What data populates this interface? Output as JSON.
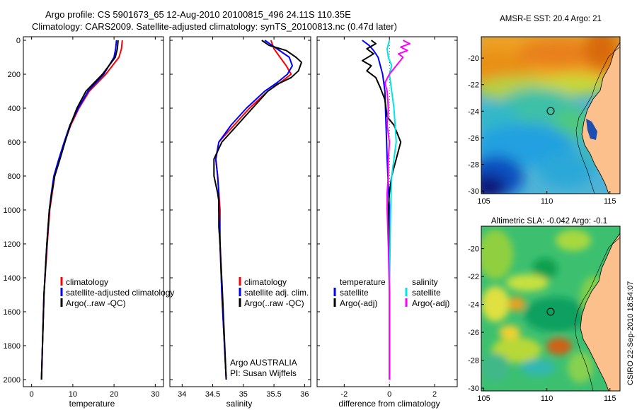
{
  "header": {
    "title_line1": "Argo profile: CS 5901673_65 12-Aug-2010 20100815_496 24.11S 110.35E",
    "title_line2": "Climatology: CARS2009. Satellite-adjusted climatology: synTS_20100813.nc (0.47d later)"
  },
  "credits": {
    "argo": "Argo AUSTRALIA",
    "pi": "PI: Susan Wijffels",
    "stamp": "CSIRO 22-Sep-2010 18:54:07"
  },
  "colors": {
    "climatology": "#ff0000",
    "satellite": "#0000ff",
    "argo": "#000000",
    "sal_satellite": "#00e5e5",
    "sal_argo": "#ff00ff",
    "land": "#fbc08c"
  },
  "chart_data": [
    {
      "type": "line",
      "xlabel": "temperature",
      "xticks": [
        "0",
        "10",
        "20",
        "30"
      ],
      "xlim": [
        -2,
        32
      ],
      "ylim": [
        2000,
        0
      ],
      "yticks": [
        "0",
        "200",
        "400",
        "600",
        "800",
        "1000",
        "1200",
        "1400",
        "1600",
        "1800",
        "2000"
      ],
      "legend": [
        "climatology",
        "satellite-adjusted climatology",
        "Argo(..raw -QC)"
      ],
      "series": [
        {
          "name": "climatology",
          "color": "#ff0000",
          "depth": [
            0,
            50,
            100,
            200,
            300,
            400,
            500,
            600,
            700,
            800,
            900,
            1000,
            1200,
            1500,
            2000
          ],
          "values": [
            22.0,
            21.8,
            21.2,
            18.0,
            14.0,
            11.5,
            9.5,
            8.0,
            6.8,
            5.6,
            5.0,
            4.4,
            3.8,
            3.0,
            2.4
          ]
        },
        {
          "name": "satellite-adjusted climatology",
          "color": "#0000ff",
          "depth": [
            0,
            50,
            100,
            200,
            300,
            400,
            500,
            600,
            700,
            800,
            900,
            1000,
            1200,
            1500,
            2000
          ],
          "values": [
            20.6,
            20.4,
            20.0,
            17.5,
            13.7,
            11.3,
            9.3,
            7.9,
            6.6,
            5.4,
            4.8,
            4.3,
            3.7,
            3.0,
            2.4
          ]
        },
        {
          "name": "Argo(..raw -QC)",
          "color": "#000000",
          "depth": [
            0,
            50,
            100,
            200,
            300,
            400,
            500,
            600,
            700,
            800,
            900,
            1000,
            1200,
            1500,
            2000
          ],
          "values": [
            21.0,
            20.8,
            20.3,
            17.2,
            13.2,
            11.0,
            9.4,
            8.1,
            6.9,
            5.6,
            4.9,
            4.3,
            3.7,
            3.0,
            2.4
          ]
        }
      ]
    },
    {
      "type": "line",
      "xlabel": "salinity",
      "xticks": [
        "34",
        "34.5",
        "35",
        "35.5",
        "36"
      ],
      "xlim": [
        33.8,
        36.1
      ],
      "ylim": [
        2000,
        0
      ],
      "legend": [
        "climatology",
        "satellite adj. clim.",
        "Argo(..raw -QC)"
      ],
      "series": [
        {
          "name": "climatology",
          "color": "#ff0000",
          "depth": [
            0,
            50,
            100,
            150,
            200,
            250,
            300,
            400,
            500,
            600,
            700,
            800,
            900,
            1000,
            1200,
            1500,
            2000
          ],
          "values": [
            35.45,
            35.5,
            35.6,
            35.7,
            35.78,
            35.6,
            35.4,
            35.1,
            34.85,
            34.6,
            34.55,
            34.58,
            34.6,
            34.62,
            34.62,
            34.65,
            34.72
          ]
        },
        {
          "name": "satellite adj. clim.",
          "color": "#0000ff",
          "depth": [
            0,
            50,
            100,
            150,
            200,
            250,
            300,
            400,
            500,
            600,
            700,
            800,
            900,
            1000,
            1200,
            1500,
            2000
          ],
          "values": [
            35.35,
            35.55,
            35.75,
            35.8,
            35.72,
            35.55,
            35.35,
            35.05,
            34.8,
            34.6,
            34.55,
            34.58,
            34.6,
            34.6,
            34.62,
            34.65,
            34.72
          ]
        },
        {
          "name": "Argo(..raw -QC)",
          "color": "#000000",
          "depth": [
            0,
            30,
            60,
            100,
            130,
            180,
            220,
            260,
            300,
            400,
            500,
            600,
            700,
            800,
            850,
            900,
            950,
            1000,
            1100,
            1200,
            1500,
            2000
          ],
          "values": [
            35.3,
            35.42,
            35.7,
            35.86,
            35.95,
            35.9,
            35.78,
            35.55,
            35.4,
            35.15,
            34.9,
            34.65,
            34.52,
            34.52,
            34.55,
            34.58,
            34.6,
            34.6,
            34.6,
            34.62,
            34.66,
            34.72
          ]
        }
      ]
    },
    {
      "type": "line",
      "xlabel": "difference from climatology",
      "xticks": [
        "-2",
        "0",
        "2"
      ],
      "xlim": [
        -3.2,
        3.0
      ],
      "ylim": [
        2000,
        0
      ],
      "legend_temperature": {
        "header": "temperature",
        "items": [
          "satellite",
          "Argo(-adj)"
        ]
      },
      "legend_salinity": {
        "header": "salinity",
        "items": [
          "satellite",
          "Argo(-adj)"
        ]
      },
      "series": [
        {
          "name": "temperature satellite",
          "color": "#0000ff",
          "depth": [
            0,
            30,
            60,
            100,
            200,
            300,
            500,
            700,
            1000,
            1500,
            2000
          ],
          "values": [
            -1.2,
            -0.9,
            -0.7,
            -0.5,
            -0.3,
            -0.2,
            -0.15,
            -0.1,
            0.0,
            0.0,
            0.0
          ]
        },
        {
          "name": "temperature Argo(-adj)",
          "color": "#000000",
          "depth": [
            0,
            20,
            50,
            80,
            120,
            150,
            180,
            220,
            280,
            350,
            450,
            500,
            600,
            700,
            800,
            900,
            1000,
            1200,
            1500,
            2000
          ],
          "values": [
            -0.8,
            -0.6,
            -1.0,
            -0.7,
            -1.2,
            -0.8,
            -1.0,
            -0.6,
            -0.4,
            -0.2,
            -0.1,
            0.2,
            0.5,
            0.3,
            0.1,
            0.0,
            -0.05,
            0.0,
            0.0,
            0.0
          ]
        },
        {
          "name": "salinity satellite",
          "color": "#00e5e5",
          "depth": [
            0,
            50,
            100,
            150,
            200,
            300,
            400,
            500,
            600,
            700,
            800,
            1000,
            1500,
            2000
          ],
          "values": [
            0.0,
            -0.1,
            -0.05,
            0.1,
            0.0,
            0.1,
            0.2,
            0.25,
            0.3,
            0.2,
            0.1,
            0.05,
            0.0,
            0.0
          ]
        },
        {
          "name": "salinity Argo(-adj)",
          "color": "#ff00ff",
          "depth": [
            0,
            20,
            40,
            60,
            80,
            100,
            150,
            200,
            250,
            300,
            400,
            500,
            600,
            700,
            800,
            900,
            1000,
            1200,
            1500,
            2000
          ],
          "values": [
            0.6,
            0.9,
            0.5,
            0.8,
            0.4,
            0.6,
            0.3,
            0.0,
            -0.2,
            -0.1,
            -0.05,
            -0.1,
            0.0,
            -0.05,
            -0.05,
            -0.1,
            -0.1,
            -0.05,
            0.0,
            0.0
          ]
        }
      ]
    },
    {
      "type": "heatmap",
      "title": "AMSR-E SST: 20.4 Argo: 21",
      "xticks": [
        "105",
        "110",
        "115"
      ],
      "yticks": [
        "-20",
        "-22",
        "-24",
        "-26",
        "-28",
        "-30"
      ],
      "xlim": [
        104.8,
        115.8
      ],
      "ylim": [
        -30.2,
        -18.4
      ],
      "argo_position": {
        "lon": 110.35,
        "lat": -24.11
      }
    },
    {
      "type": "heatmap",
      "title": "Altimetric SLA: -0.042 Argo: -0.1",
      "xticks": [
        "105",
        "110",
        "115"
      ],
      "yticks": [
        "-20",
        "-22",
        "-24",
        "-26",
        "-28",
        "-30"
      ],
      "xlim": [
        104.8,
        115.8
      ],
      "ylim": [
        -30.2,
        -18.4
      ],
      "argo_position": {
        "lon": 110.35,
        "lat": -24.11
      }
    }
  ]
}
